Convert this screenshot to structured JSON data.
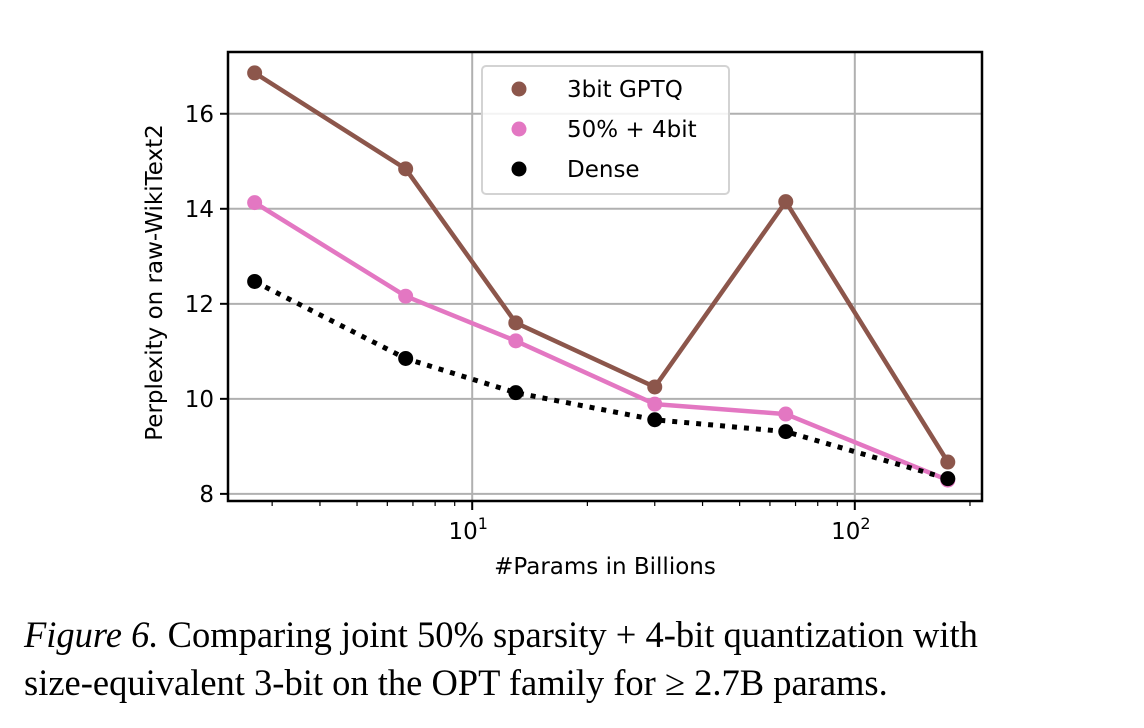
{
  "chart_data": {
    "type": "line",
    "title": "",
    "xlabel": "#Params in Billions",
    "ylabel": "Perplexity on raw-WikiText2",
    "xscale": "log",
    "xlim": [
      2.3,
      215
    ],
    "ylim": [
      7.85,
      17.3
    ],
    "xticks": [
      {
        "value": 10,
        "base": "10",
        "exp": "1"
      },
      {
        "value": 100,
        "base": "10",
        "exp": "2"
      }
    ],
    "yticks": [
      8,
      10,
      12,
      14,
      16
    ],
    "grid": true,
    "legend_position": "top-center",
    "x": [
      2.7,
      6.7,
      13,
      30,
      66,
      175
    ],
    "series": [
      {
        "name": "3bit GPTQ",
        "color": "#8c564b",
        "linestyle": "solid",
        "values": [
          16.86,
          14.84,
          11.6,
          10.25,
          14.15,
          8.67
        ]
      },
      {
        "name": "50% + 4bit",
        "color": "#e377c2",
        "linestyle": "solid",
        "values": [
          14.13,
          12.16,
          11.22,
          9.89,
          9.68,
          8.29
        ]
      },
      {
        "name": "Dense",
        "color": "#000000",
        "linestyle": "dotted",
        "values": [
          12.47,
          10.85,
          10.13,
          9.56,
          9.31,
          8.32
        ]
      }
    ]
  },
  "caption": {
    "figure_label": "Figure 6.",
    "line1": "Comparing joint 50% sparsity + 4-bit quantization with",
    "line2": "size-equivalent 3-bit on the OPT family for ≥ 2.7B params."
  }
}
